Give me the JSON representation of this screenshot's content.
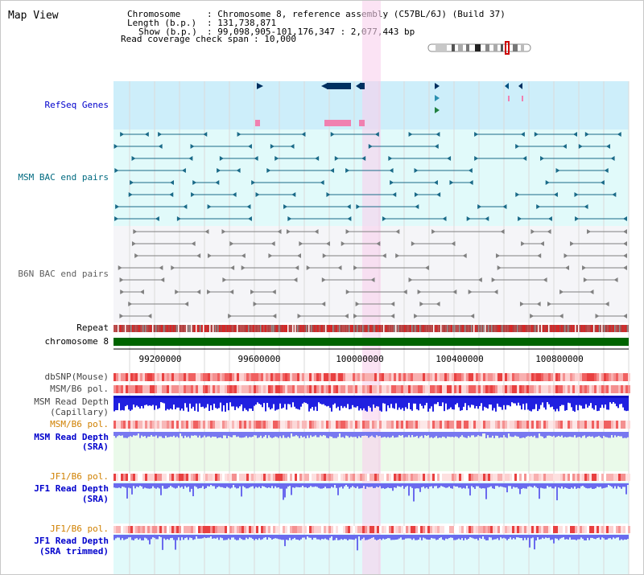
{
  "title": "Map View",
  "header": {
    "chromosome_key": "Chromosome",
    "chromosome_val": ": Chromosome 8, reference assembly (C57BL/6J) (Build 37)",
    "length_key": "Length (b.p.)",
    "length_val": ": 131,738,871",
    "show_key": "Show (b.p.)",
    "show_val": ": 99,098,905-101,176,347 : 2,077,443 bp",
    "coverage_key": "Read coverage check span",
    "coverage_val": ": 10,000"
  },
  "tracks": {
    "refseq": "RefSeq Genes",
    "msm_bac": "MSM BAC end pairs",
    "b6n_bac": "B6N BAC end pairs",
    "repeat": "Repeat",
    "chromosome": "chromosome 8",
    "dbsnp": "dbSNP(Mouse)",
    "msm_b6_pol": "MSM/B6 pol.",
    "msm_read_depth_cap_1": "MSM Read Depth",
    "msm_read_depth_cap_2": "(Capillary)",
    "msm_b6_pol_2": "MSM/B6 pol.",
    "msm_read_depth_sra_1": "MSM Read Depth",
    "msm_read_depth_sra_2": "(SRA)",
    "jf1_b6_pol": "JF1/B6 pol.",
    "jf1_read_depth_1": "JF1 Read Depth",
    "jf1_read_depth_2": "(SRA)",
    "jf1_b6_pol_2": "JF1/B6 pol.",
    "jf1_read_depth_trim_1": "JF1 Read Depth",
    "jf1_read_depth_trim_2": "(SRA trimmed)"
  },
  "axis_ticks": [
    "99200000",
    "99600000",
    "100000000",
    "100400000",
    "100800000"
  ],
  "colors": {
    "label_blue": "#0000cc",
    "label_teal": "#006a80",
    "label_gray": "#606060",
    "label_orange": "#d08000",
    "label_black": "#000000",
    "refseq_bg": "#cdeefa",
    "msm_bac_bg": "#e1fafa",
    "b6n_bac_bg": "#f5f5f8",
    "highlight": "#f8d0ec",
    "chromosome_bar": "#006400",
    "depth_blue": "#2020e0",
    "depth_light": "#7878f0"
  }
}
